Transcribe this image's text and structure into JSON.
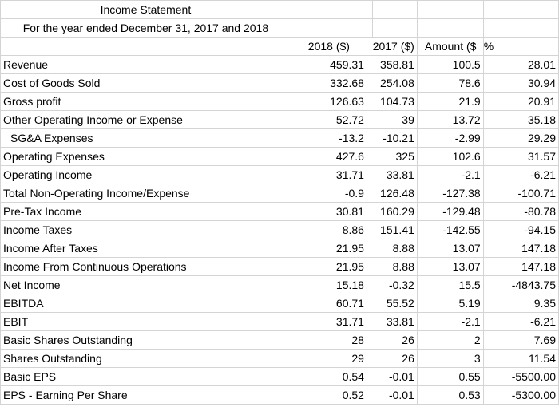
{
  "header": {
    "title": "Income Statement",
    "subtitle": "For the year ended December 31, 2017 and 2018"
  },
  "columns": [
    "2018 ($)",
    "2017 ($)",
    "Amount ($",
    "%"
  ],
  "rows": [
    {
      "label": "Revenue",
      "y2018": "459.31",
      "y2017": "358.81",
      "amount": "100.5",
      "pct": "28.01"
    },
    {
      "label": "Cost of Goods Sold",
      "y2018": "332.68",
      "y2017": "254.08",
      "amount": "78.6",
      "pct": "30.94"
    },
    {
      "label": "Gross profit",
      "y2018": "126.63",
      "y2017": "104.73",
      "amount": "21.9",
      "pct": "20.91"
    },
    {
      "label": "Other Operating Income or Expense",
      "y2018": "52.72",
      "y2017": "39",
      "amount": "13.72",
      "pct": "35.18"
    },
    {
      "label": "SG&A Expenses",
      "y2018": "-13.2",
      "y2017": "-10.21",
      "amount": "-2.99",
      "pct": "29.29"
    },
    {
      "label": "Operating Expenses",
      "y2018": "427.6",
      "y2017": "325",
      "amount": "102.6",
      "pct": "31.57"
    },
    {
      "label": "Operating Income",
      "y2018": "31.71",
      "y2017": "33.81",
      "amount": "-2.1",
      "pct": "-6.21"
    },
    {
      "label": "Total Non-Operating Income/Expense",
      "y2018": "-0.9",
      "y2017": "126.48",
      "amount": "-127.38",
      "pct": "-100.71"
    },
    {
      "label": "Pre-Tax Income",
      "y2018": "30.81",
      "y2017": "160.29",
      "amount": "-129.48",
      "pct": "-80.78"
    },
    {
      "label": "Income Taxes",
      "y2018": "8.86",
      "y2017": "151.41",
      "amount": "-142.55",
      "pct": "-94.15"
    },
    {
      "label": "Income After Taxes",
      "y2018": "21.95",
      "y2017": "8.88",
      "amount": "13.07",
      "pct": "147.18"
    },
    {
      "label": "Income From Continuous Operations",
      "y2018": "21.95",
      "y2017": "8.88",
      "amount": "13.07",
      "pct": "147.18"
    },
    {
      "label": "Net Income",
      "y2018": "15.18",
      "y2017": "-0.32",
      "amount": "15.5",
      "pct": "-4843.75"
    },
    {
      "label": "EBITDA",
      "y2018": "60.71",
      "y2017": "55.52",
      "amount": "5.19",
      "pct": "9.35"
    },
    {
      "label": "EBIT",
      "y2018": "31.71",
      "y2017": "33.81",
      "amount": "-2.1",
      "pct": "-6.21"
    },
    {
      "label": "Basic Shares Outstanding",
      "y2018": "28",
      "y2017": "26",
      "amount": "2",
      "pct": "7.69"
    },
    {
      "label": "Shares Outstanding",
      "y2018": "29",
      "y2017": "26",
      "amount": "3",
      "pct": "11.54"
    },
    {
      "label": "Basic EPS",
      "y2018": "0.54",
      "y2017": "-0.01",
      "amount": "0.55",
      "pct": "-5500.00"
    },
    {
      "label": "EPS - Earning Per Share",
      "y2018": "0.52",
      "y2017": "-0.01",
      "amount": "0.53",
      "pct": "-5300.00"
    }
  ]
}
